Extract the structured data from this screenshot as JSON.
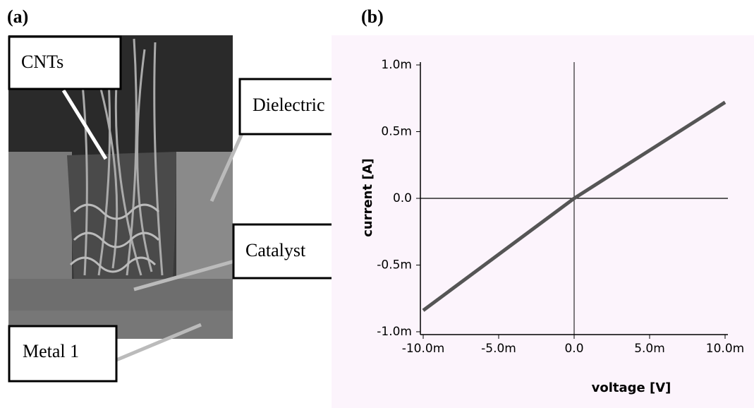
{
  "panel_a": {
    "label": "(a)",
    "annotations": [
      "CNTs",
      "Dielectric",
      "Catalyst",
      "Metal 1"
    ]
  },
  "chart_data": {
    "type": "line",
    "panel_label": "(b)",
    "x_label": "voltage [V]",
    "y_label": "current [A]",
    "x": [
      -0.01,
      0,
      0.01
    ],
    "values": [
      -0.00084,
      0,
      0.00072
    ],
    "color": "#555555",
    "xlim": [
      -0.01,
      0.01
    ],
    "ylim": [
      -0.001,
      0.001
    ],
    "xticks": [
      {
        "value": -0.01,
        "label": "-10.0m"
      },
      {
        "value": -0.005,
        "label": "-5.0m"
      },
      {
        "value": 0,
        "label": "0.0"
      },
      {
        "value": 0.005,
        "label": "5.0m"
      },
      {
        "value": 0.01,
        "label": "10.0m"
      }
    ],
    "yticks": [
      {
        "value": -0.001,
        "label": "-1.0m"
      },
      {
        "value": -0.0005,
        "label": "-0.5m"
      },
      {
        "value": 0,
        "label": "0.0"
      },
      {
        "value": 0.0005,
        "label": "0.5m"
      },
      {
        "value": 0.001,
        "label": "1.0m"
      }
    ]
  }
}
